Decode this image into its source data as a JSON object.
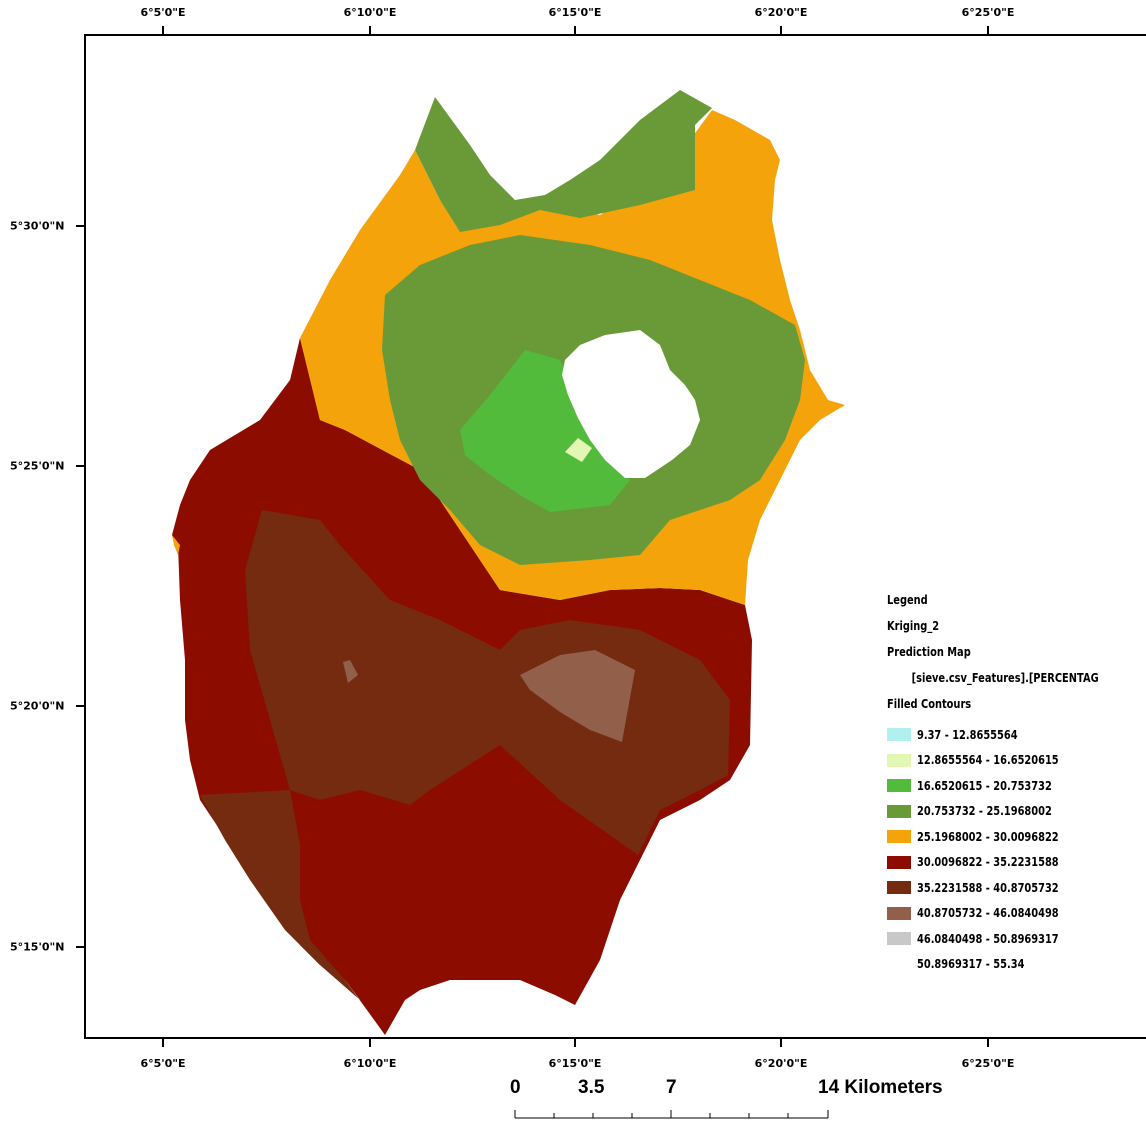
{
  "top_ticks": [
    "6°5'0\"E",
    "6°10'0\"E",
    "6°15'0\"E",
    "6°20'0\"E",
    "6°25'0\"E"
  ],
  "bottom_ticks": [
    "6°5'0\"E",
    "6°10'0\"E",
    "6°15'0\"E",
    "6°20'0\"E",
    "6°25'0\"E"
  ],
  "left_ticks": [
    "5°30'0\"N",
    "5°25'0\"N",
    "5°20'0\"N",
    "5°15'0\"N"
  ],
  "legend": {
    "heading": "Legend",
    "layer": "Kriging_2",
    "subtitle": "Prediction Map",
    "field": "[sieve.csv_Features].[PERCENTAG",
    "contours_title": "Filled Contours",
    "classes": [
      {
        "label": "9.37 - 12.8655564",
        "color": "#b2f0f0"
      },
      {
        "label": "12.8655564 - 16.6520615",
        "color": "#e3f7b4"
      },
      {
        "label": "16.6520615 - 20.753732",
        "color": "#53bb3b"
      },
      {
        "label": "20.753732 - 25.1968002",
        "color": "#6a9a37"
      },
      {
        "label": "25.1968002 - 30.0096822",
        "color": "#f5a30a"
      },
      {
        "label": "30.0096822 - 35.2231588",
        "color": "#8c0c00"
      },
      {
        "label": "35.2231588 - 40.8705732",
        "color": "#742b10"
      },
      {
        "label": "40.8705732 - 46.0840498",
        "color": "#92604a"
      },
      {
        "label": "46.0840498 - 50.8969317",
        "color": "#c8c8c8"
      },
      {
        "label": "50.8969317 - 55.34",
        "color": "#ffffff"
      }
    ]
  },
  "scalebar": {
    "labels": [
      "0",
      "3.5",
      "7",
      "14 Kilometers"
    ]
  }
}
